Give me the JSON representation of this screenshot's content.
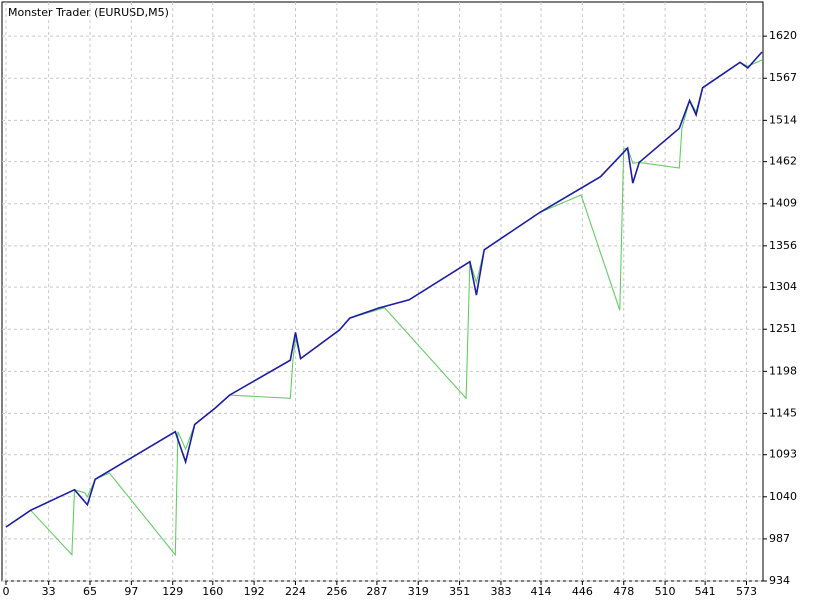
{
  "chart_data": {
    "type": "line",
    "title": "Monster Trader (EURUSD,M5)",
    "xlim": [
      0,
      585
    ],
    "ylim": [
      934,
      1663
    ],
    "xticks": [
      0,
      33,
      65,
      97,
      129,
      160,
      192,
      224,
      256,
      287,
      319,
      351,
      383,
      414,
      446,
      478,
      510,
      541,
      573
    ],
    "yticks": [
      934,
      987,
      1040,
      1093,
      1145,
      1198,
      1251,
      1304,
      1356,
      1409,
      1462,
      1514,
      1567,
      1620
    ],
    "grid": true,
    "series": [
      {
        "color": "#66cc66",
        "x": [
          0,
          19,
          51,
          53,
          61,
          63,
          69,
          80,
          131,
          133,
          139,
          146,
          162,
          173,
          220,
          222,
          224,
          228,
          258,
          266,
          293,
          356,
          359,
          364,
          370,
          413,
          445,
          475,
          478,
          481,
          485,
          490,
          521,
          523,
          529,
          534,
          539,
          568,
          574,
          585
        ],
        "values": [
          1002,
          1023,
          967,
          1049,
          1045,
          1040,
          1062,
          1070,
          967,
          1122,
          1100,
          1131,
          1152,
          1168,
          1164,
          1212,
          1240,
          1214,
          1250,
          1265,
          1278,
          1164,
          1336,
          1310,
          1351,
          1398,
          1420,
          1275,
          1478,
          1479,
          1460,
          1461,
          1454,
          1504,
          1539,
          1525,
          1555,
          1587,
          1582,
          1590
        ]
      },
      {
        "color": "#1c1ca8",
        "x": [
          0,
          19,
          53,
          63,
          69,
          131,
          139,
          146,
          162,
          173,
          220,
          224,
          228,
          258,
          266,
          289,
          312,
          359,
          364,
          370,
          413,
          460,
          481,
          485,
          490,
          521,
          529,
          534,
          539,
          568,
          574,
          585
        ],
        "values": [
          1002,
          1023,
          1049,
          1030,
          1062,
          1122,
          1084,
          1131,
          1152,
          1168,
          1212,
          1247,
          1214,
          1250,
          1265,
          1278,
          1288,
          1336,
          1294,
          1351,
          1398,
          1443,
          1479,
          1435,
          1461,
          1504,
          1539,
          1521,
          1555,
          1587,
          1580,
          1600
        ]
      }
    ]
  }
}
